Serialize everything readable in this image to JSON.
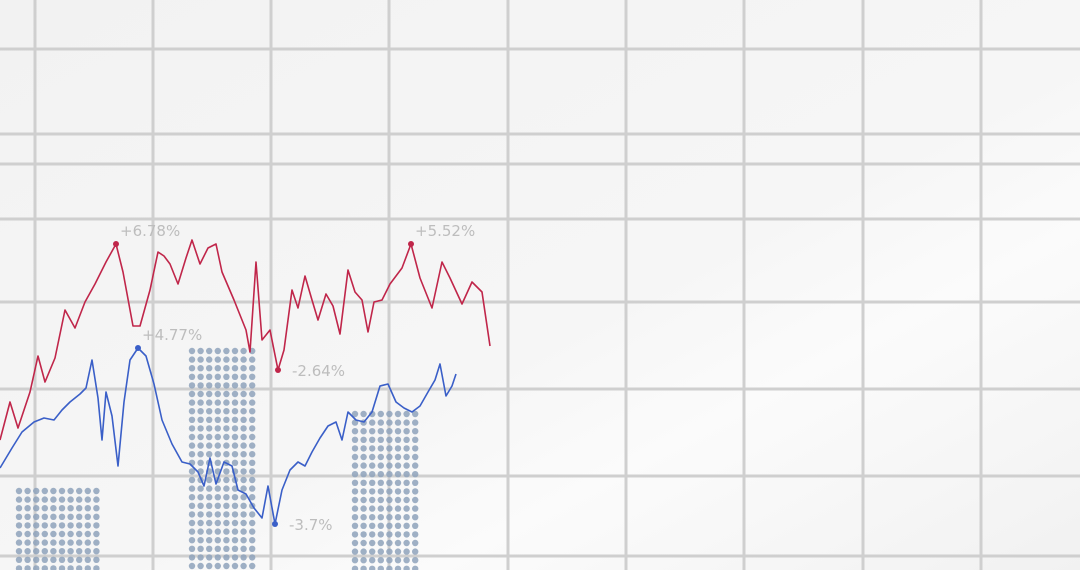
{
  "chart_data": {
    "type": "line",
    "title": "",
    "xlabel": "",
    "ylabel": "",
    "grid": true,
    "colors": {
      "background": "#f4f4f4",
      "grid": "#cfcfcf",
      "red_series": "#c0264a",
      "blue_series": "#3a5fc8",
      "dots": "#8ea2bb",
      "label": "#bdbdbd"
    },
    "series": [
      {
        "color": "red",
        "points": [
          [
            0,
            440
          ],
          [
            10,
            402
          ],
          [
            18,
            428
          ],
          [
            30,
            392
          ],
          [
            38,
            356
          ],
          [
            45,
            382
          ],
          [
            55,
            358
          ],
          [
            65,
            310
          ],
          [
            75,
            328
          ],
          [
            85,
            302
          ],
          [
            95,
            284
          ],
          [
            106,
            262
          ],
          [
            116,
            244
          ],
          [
            123,
            272
          ],
          [
            133,
            326
          ],
          [
            140,
            326
          ],
          [
            150,
            290
          ],
          [
            158,
            252
          ],
          [
            164,
            256
          ],
          [
            170,
            264
          ],
          [
            178,
            284
          ],
          [
            186,
            258
          ],
          [
            192,
            240
          ],
          [
            200,
            264
          ],
          [
            208,
            248
          ],
          [
            216,
            244
          ],
          [
            222,
            272
          ],
          [
            234,
            300
          ],
          [
            246,
            330
          ],
          [
            250,
            352
          ],
          [
            256,
            262
          ],
          [
            262,
            340
          ],
          [
            270,
            330
          ],
          [
            278,
            370
          ],
          [
            284,
            350
          ],
          [
            292,
            290
          ],
          [
            298,
            308
          ],
          [
            305,
            276
          ],
          [
            312,
            300
          ],
          [
            318,
            320
          ],
          [
            326,
            294
          ],
          [
            333,
            306
          ],
          [
            340,
            334
          ],
          [
            348,
            270
          ],
          [
            355,
            292
          ],
          [
            362,
            300
          ],
          [
            368,
            332
          ],
          [
            374,
            302
          ],
          [
            382,
            300
          ],
          [
            390,
            284
          ],
          [
            402,
            268
          ],
          [
            411,
            244
          ],
          [
            420,
            278
          ],
          [
            432,
            308
          ],
          [
            442,
            262
          ],
          [
            450,
            278
          ],
          [
            462,
            304
          ],
          [
            472,
            282
          ],
          [
            482,
            292
          ],
          [
            490,
            346
          ]
        ],
        "markers": [
          {
            "x": 116,
            "y": 244,
            "label": "+6.78%"
          },
          {
            "x": 278,
            "y": 370,
            "label": "-2.64%"
          },
          {
            "x": 411,
            "y": 244,
            "label": "+5.52%"
          }
        ]
      },
      {
        "color": "blue",
        "points": [
          [
            0,
            468
          ],
          [
            12,
            448
          ],
          [
            22,
            432
          ],
          [
            34,
            422
          ],
          [
            44,
            418
          ],
          [
            54,
            420
          ],
          [
            62,
            410
          ],
          [
            70,
            402
          ],
          [
            80,
            394
          ],
          [
            86,
            388
          ],
          [
            92,
            360
          ],
          [
            98,
            398
          ],
          [
            102,
            440
          ],
          [
            106,
            392
          ],
          [
            112,
            416
          ],
          [
            118,
            466
          ],
          [
            124,
            402
          ],
          [
            130,
            360
          ],
          [
            138,
            348
          ],
          [
            146,
            356
          ],
          [
            154,
            384
          ],
          [
            162,
            420
          ],
          [
            172,
            444
          ],
          [
            182,
            462
          ],
          [
            190,
            464
          ],
          [
            198,
            472
          ],
          [
            204,
            486
          ],
          [
            210,
            458
          ],
          [
            216,
            484
          ],
          [
            224,
            462
          ],
          [
            232,
            466
          ],
          [
            238,
            490
          ],
          [
            246,
            494
          ],
          [
            254,
            508
          ],
          [
            262,
            518
          ],
          [
            268,
            486
          ],
          [
            275,
            524
          ],
          [
            282,
            490
          ],
          [
            290,
            470
          ],
          [
            298,
            462
          ],
          [
            305,
            466
          ],
          [
            312,
            452
          ],
          [
            320,
            438
          ],
          [
            328,
            426
          ],
          [
            336,
            422
          ],
          [
            342,
            440
          ],
          [
            348,
            412
          ],
          [
            356,
            420
          ],
          [
            364,
            422
          ],
          [
            372,
            412
          ],
          [
            380,
            386
          ],
          [
            388,
            384
          ],
          [
            396,
            402
          ],
          [
            404,
            408
          ],
          [
            412,
            412
          ],
          [
            420,
            406
          ],
          [
            428,
            392
          ],
          [
            435,
            380
          ],
          [
            440,
            364
          ],
          [
            446,
            396
          ],
          [
            452,
            386
          ],
          [
            456,
            374
          ]
        ],
        "markers": [
          {
            "x": 138,
            "y": 348,
            "label": "+4.77%"
          },
          {
            "x": 275,
            "y": 524,
            "label": "-3.7%"
          }
        ]
      }
    ],
    "dot_bars": [
      {
        "x0": 15,
        "x1": 97,
        "y0": 487,
        "y1": 570
      },
      {
        "x0": 188,
        "x1": 257,
        "y0": 347,
        "y1": 570
      },
      {
        "x0": 351,
        "x1": 421,
        "y0": 410,
        "y1": 570
      }
    ]
  }
}
